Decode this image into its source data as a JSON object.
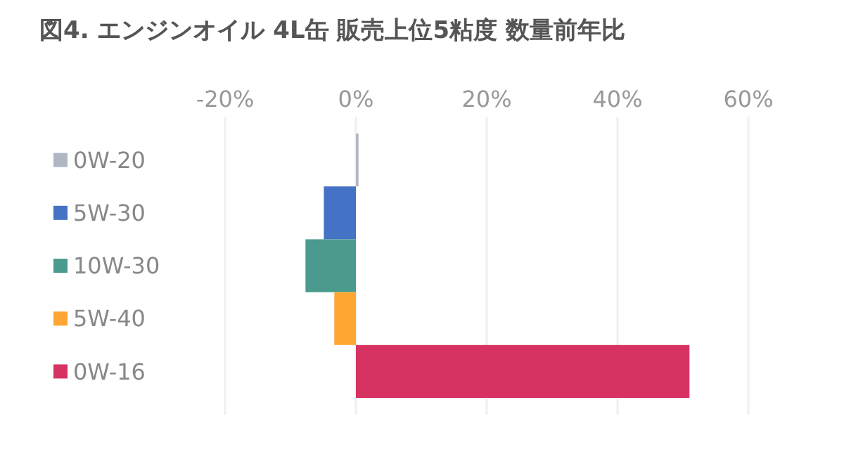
{
  "chart_data": {
    "type": "bar",
    "title": "図4. エンジンオイル 4L缶 販売上位5粘度 数量前年比",
    "orientation": "horizontal",
    "categories": [
      "0W-20",
      "5W-30",
      "10W-30",
      "5W-40",
      "0W-16"
    ],
    "values": [
      0.4,
      -4.9,
      -7.7,
      -3.3,
      51
    ],
    "colors": [
      "#b0b7c3",
      "#4472c4",
      "#4a9a8e",
      "#ffa632",
      "#d63362"
    ],
    "xlim": [
      -20,
      60
    ],
    "xticks": [
      {
        "value": -20,
        "label": "-20%"
      },
      {
        "value": 0,
        "label": "0%"
      },
      {
        "value": 20,
        "label": "20%"
      },
      {
        "value": 40,
        "label": "40%"
      },
      {
        "value": 60,
        "label": "60%"
      }
    ],
    "grid": "x"
  }
}
